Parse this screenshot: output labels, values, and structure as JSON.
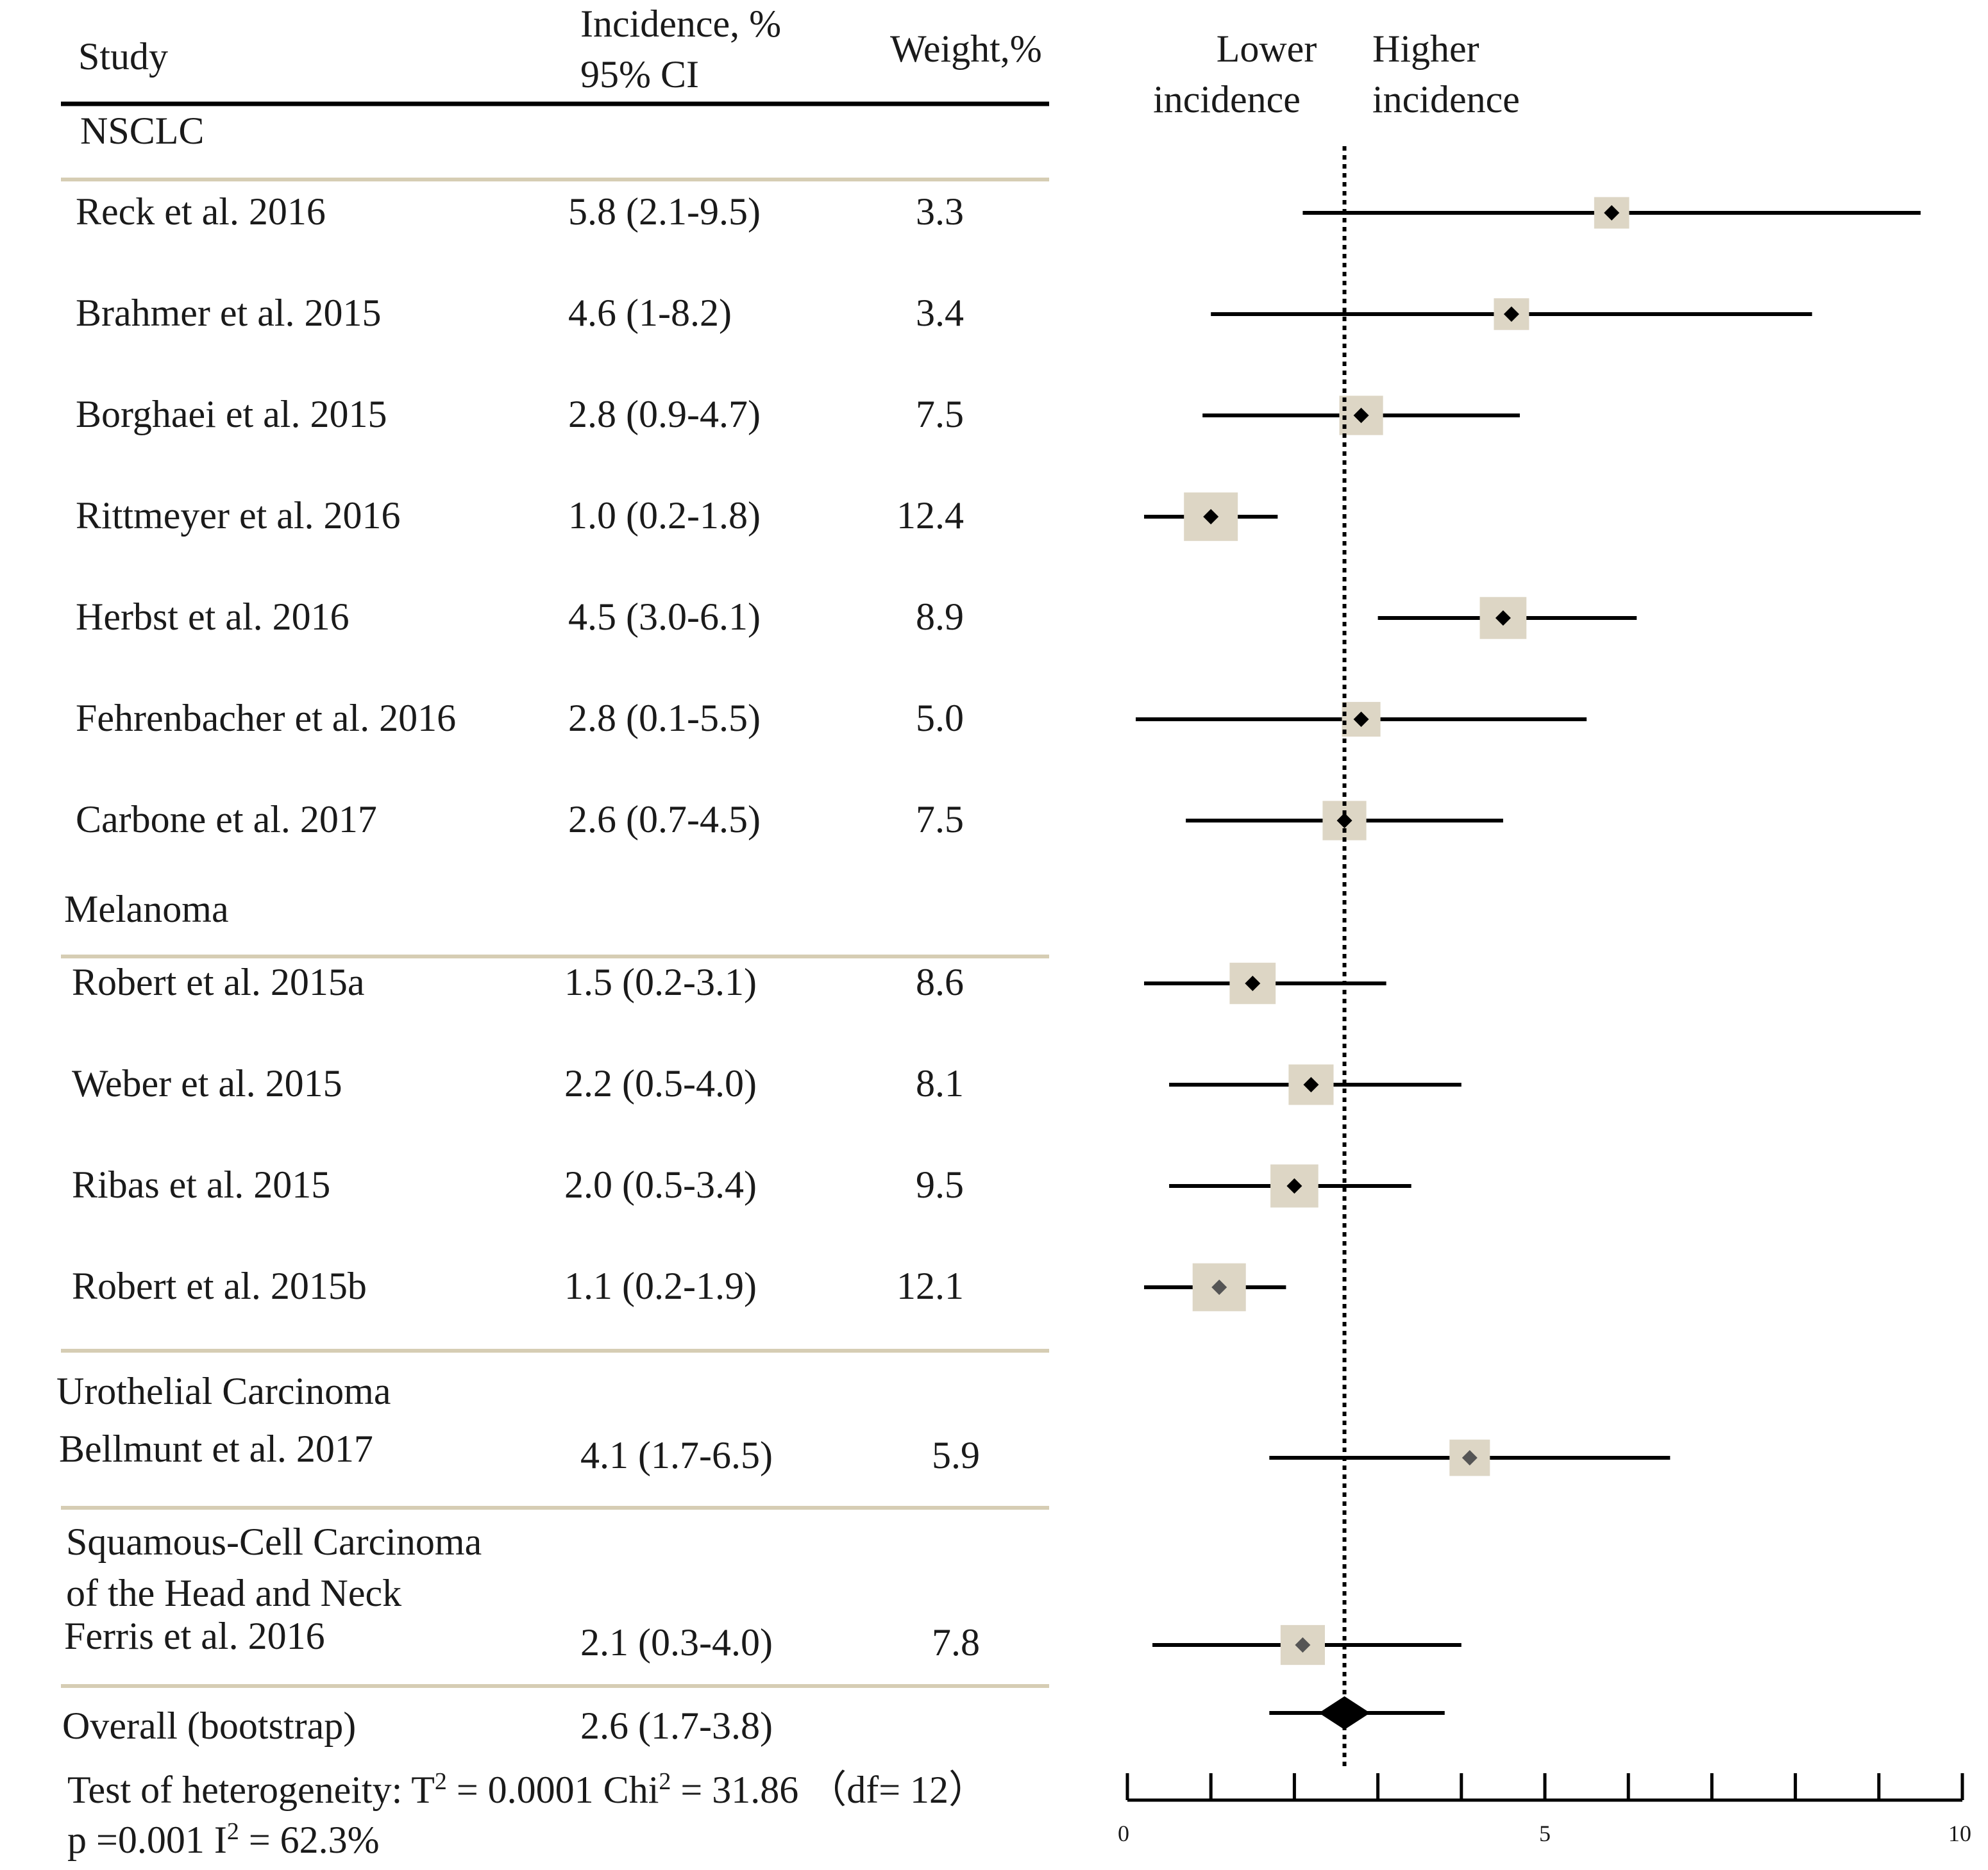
{
  "chart_data": {
    "type": "forest",
    "x_axis": {
      "min": 0,
      "max": 10,
      "tick_step": 1,
      "tick_labels": [
        "0",
        "5",
        "10"
      ]
    },
    "reference_line": 2.6,
    "headers": {
      "study": "Study",
      "incidence_line1": "Incidence, %",
      "incidence_line2": "95% CI",
      "weight": "Weight,%",
      "lower_line1": "Lower",
      "lower_line2": "incidence",
      "higher_line1": "Higher",
      "higher_line2": "incidence"
    },
    "groups": [
      {
        "name_lines": [
          "NSCLC"
        ],
        "studies": [
          {
            "study": "Reck et al. 2016",
            "ci_text": "5.8 (2.1-9.5)",
            "weight_text": "3.3",
            "estimate": 5.8,
            "lower": 2.1,
            "upper": 9.5,
            "weight": 3.3
          },
          {
            "study": "Brahmer et al. 2015",
            "ci_text": "4.6 (1-8.2)",
            "weight_text": "3.4",
            "estimate": 4.6,
            "lower": 1.0,
            "upper": 8.2,
            "weight": 3.4
          },
          {
            "study": "Borghaei et al. 2015",
            "ci_text": "2.8 (0.9-4.7)",
            "weight_text": "7.5",
            "estimate": 2.8,
            "lower": 0.9,
            "upper": 4.7,
            "weight": 7.5
          },
          {
            "study": "Rittmeyer et al. 2016",
            "ci_text": "1.0 (0.2-1.8)",
            "weight_text": "12.4",
            "estimate": 1.0,
            "lower": 0.2,
            "upper": 1.8,
            "weight": 12.4
          },
          {
            "study": "Herbst et al.  2016",
            "ci_text": "4.5 (3.0-6.1)",
            "weight_text": "8.9",
            "estimate": 4.5,
            "lower": 3.0,
            "upper": 6.1,
            "weight": 8.9
          },
          {
            "study": "Fehrenbacher et al. 2016",
            "ci_text": "2.8 (0.1-5.5)",
            "weight_text": "5.0",
            "estimate": 2.8,
            "lower": 0.1,
            "upper": 5.5,
            "weight": 5.0
          },
          {
            "study": "Carbone et al.  2017",
            "ci_text": "2.6 (0.7-4.5)",
            "weight_text": "7.5",
            "estimate": 2.6,
            "lower": 0.7,
            "upper": 4.5,
            "weight": 7.5
          }
        ]
      },
      {
        "name_lines": [
          "Melanoma"
        ],
        "studies": [
          {
            "study": "Robert et al. 2015a",
            "ci_text": "1.5 (0.2-3.1)",
            "weight_text": "8.6",
            "estimate": 1.5,
            "lower": 0.2,
            "upper": 3.1,
            "weight": 8.6
          },
          {
            "study": "Weber et al. 2015",
            "ci_text": "2.2 (0.5-4.0)",
            "weight_text": "8.1",
            "estimate": 2.2,
            "lower": 0.5,
            "upper": 4.0,
            "weight": 8.1
          },
          {
            "study": "Ribas et al. 2015",
            "ci_text": "2.0 (0.5-3.4)",
            "weight_text": "9.5",
            "estimate": 2.0,
            "lower": 0.5,
            "upper": 3.4,
            "weight": 9.5
          },
          {
            "study": "Robert et al. 2015b",
            "ci_text": "1.1 (0.2-1.9)",
            "weight_text": "12.1",
            "estimate": 1.1,
            "lower": 0.2,
            "upper": 1.9,
            "weight": 12.1
          }
        ]
      },
      {
        "name_lines": [
          "Urothelial  Carcinoma"
        ],
        "studies": [
          {
            "study": "Bellmunt et al.  2017",
            "ci_text": "4.1 (1.7-6.5)",
            "weight_text": "5.9",
            "estimate": 4.1,
            "lower": 1.7,
            "upper": 6.5,
            "weight": 5.9
          }
        ]
      },
      {
        "name_lines": [
          "Squamous-Cell  Carcinoma",
          "of the Head and Neck"
        ],
        "studies": [
          {
            "study": "Ferris et al. 2016",
            "ci_text": "2.1 (0.3-4.0)",
            "weight_text": "7.8",
            "estimate": 2.1,
            "lower": 0.3,
            "upper": 4.0,
            "weight": 7.8
          }
        ]
      }
    ],
    "overall": {
      "label": "Overall (bootstrap)",
      "ci_text": "2.6 (1.7-3.8)",
      "estimate": 2.6,
      "lower": 1.7,
      "upper": 3.8
    },
    "heterogeneity": {
      "line1_a": "Test of heterogeneity: T",
      "line1_sup": "2",
      "line1_b": " = 0.0001    Chi",
      "line1_sup2": "2",
      "line1_c": " = 31.86 （df= 12）",
      "line2_a": "p =0.001    I",
      "line2_sup": "2",
      "line2_b": " = 62.3%"
    }
  }
}
